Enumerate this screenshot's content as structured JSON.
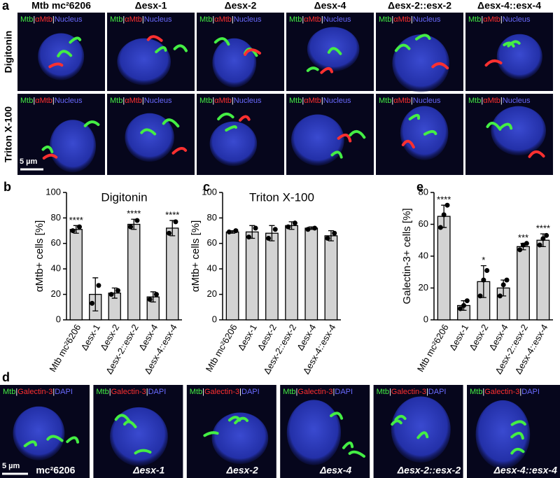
{
  "panel_a": {
    "panel_label": "a",
    "columns": [
      "Mtb mc²6206",
      "Δesx-1",
      "Δesx-2",
      "Δesx-4",
      "Δesx-2::esx-2",
      "Δesx-4::esx-4"
    ],
    "rows": [
      "Digitonin",
      "Triton X-100"
    ],
    "stains": [
      {
        "text": "Mtb",
        "color": "#44ee44"
      },
      {
        "text": "|",
        "color": "#ffffff"
      },
      {
        "text": "αMtb",
        "color": "#ff3030"
      },
      {
        "text": "|",
        "color": "#ffffff"
      },
      {
        "text": "Nucleus",
        "color": "#6a6aff"
      }
    ],
    "scale_bar": "5 µm"
  },
  "chart_data": [
    {
      "type": "bar",
      "panel_label": "b",
      "title": "Digitonin",
      "ylabel": "αMtb+ cells [%]",
      "categories": [
        "Mtb mc²6206",
        "Δesx-1",
        "Δesx-2",
        "Δesx-2::esx-2",
        "Δesx-4",
        "Δesx-4::esx-4"
      ],
      "values": [
        71,
        20,
        21,
        75,
        18,
        72
      ],
      "errors": [
        3,
        13,
        4,
        4,
        4,
        6
      ],
      "points": [
        [
          70,
          73
        ],
        [
          13,
          27
        ],
        [
          20,
          23
        ],
        [
          73,
          78
        ],
        [
          16,
          20
        ],
        [
          68,
          77
        ]
      ],
      "significance": [
        "****",
        null,
        null,
        "****",
        null,
        "****"
      ],
      "color": "#d3d3d3",
      "ylim": [
        0,
        100
      ],
      "yticks": [
        0,
        20,
        40,
        60,
        80,
        100
      ]
    },
    {
      "type": "bar",
      "panel_label": "c",
      "title": "Triton X-100",
      "ylabel": "αMtb+ cells [%]",
      "categories": [
        "Mtb mc²6206",
        "Δesx-1",
        "Δesx-2",
        "Δesx-2::esx-2",
        "Δesx-4",
        "Δesx-4::esx-4"
      ],
      "values": [
        69,
        69,
        68,
        74,
        72,
        66
      ],
      "errors": [
        1,
        5,
        6,
        3,
        1,
        4
      ],
      "points": [
        [
          69,
          70
        ],
        [
          65,
          72
        ],
        [
          64,
          71
        ],
        [
          73,
          76
        ],
        [
          71,
          72
        ],
        [
          64,
          68
        ]
      ],
      "significance": [
        null,
        null,
        null,
        null,
        null,
        null
      ],
      "color": "#d3d3d3",
      "ylim": [
        0,
        100
      ],
      "yticks": [
        0,
        20,
        40,
        60,
        80,
        100
      ]
    },
    {
      "type": "bar",
      "panel_label": "e",
      "title": null,
      "ylabel": "Galectin-3+ cells [%]",
      "categories": [
        "Mtb mc²6206",
        "Δesx-1",
        "Δesx-2",
        "Δesx-4",
        "Δesx-2::esx-2",
        "Δesx-4::esx-4"
      ],
      "values": [
        65,
        9,
        24,
        20,
        46,
        50
      ],
      "errors": [
        7,
        3,
        10,
        5,
        2,
        4
      ],
      "points": [
        [
          58,
          66,
          72
        ],
        [
          7,
          9,
          12
        ],
        [
          15,
          25,
          31
        ],
        [
          15,
          22,
          25
        ],
        [
          44,
          47,
          48
        ],
        [
          47,
          51,
          53
        ]
      ],
      "significance": [
        "****",
        null,
        "*",
        null,
        "***",
        "****"
      ],
      "color": "#d3d3d3",
      "ylim": [
        0,
        80
      ],
      "yticks": [
        0,
        20,
        40,
        60,
        80
      ]
    }
  ],
  "panel_d": {
    "panel_label": "d",
    "stains": [
      {
        "text": "Mtb",
        "color": "#44ee44"
      },
      {
        "text": "|",
        "color": "#ffffff"
      },
      {
        "text": "Galectin-3",
        "color": "#ff3030"
      },
      {
        "text": "|",
        "color": "#ffffff"
      },
      {
        "text": "DAPI",
        "color": "#6a6aff"
      }
    ],
    "strains": [
      "mc²6206",
      "Δesx-1",
      "Δesx-2",
      "Δesx-4",
      "Δesx-2::esx-2",
      "Δesx-4::esx-4"
    ],
    "scale_bar": "5 µm"
  }
}
